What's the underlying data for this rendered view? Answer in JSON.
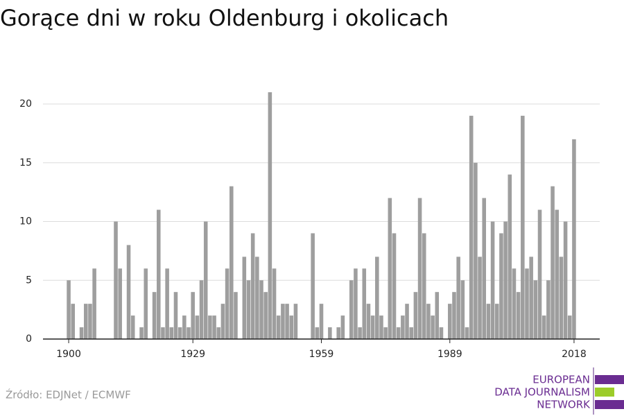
{
  "chart_data": {
    "type": "bar",
    "title": "Gorące dni w roku Oldenburg i okolicach",
    "source": "Źródło: EDJNet / ECMWF",
    "color": "#9e9e9e",
    "x": [
      1900,
      1901,
      1902,
      1903,
      1904,
      1905,
      1906,
      1907,
      1908,
      1909,
      1910,
      1911,
      1912,
      1913,
      1914,
      1915,
      1916,
      1917,
      1918,
      1919,
      1920,
      1921,
      1922,
      1923,
      1924,
      1925,
      1926,
      1927,
      1928,
      1929,
      1930,
      1931,
      1932,
      1933,
      1934,
      1935,
      1936,
      1937,
      1938,
      1939,
      1940,
      1941,
      1942,
      1943,
      1944,
      1945,
      1946,
      1947,
      1948,
      1949,
      1950,
      1951,
      1952,
      1953,
      1954,
      1955,
      1956,
      1957,
      1958,
      1959,
      1960,
      1961,
      1962,
      1963,
      1964,
      1965,
      1966,
      1967,
      1968,
      1969,
      1970,
      1971,
      1972,
      1973,
      1974,
      1975,
      1976,
      1977,
      1978,
      1979,
      1980,
      1981,
      1982,
      1983,
      1984,
      1985,
      1986,
      1987,
      1988,
      1989,
      1990,
      1991,
      1992,
      1993,
      1994,
      1995,
      1996,
      1997,
      1998,
      1999,
      2000,
      2001,
      2002,
      2003,
      2004,
      2005,
      2006,
      2007,
      2008,
      2009,
      2010,
      2011,
      2012,
      2013,
      2014,
      2015,
      2016,
      2017,
      2018
    ],
    "values": [
      5,
      3,
      0,
      1,
      3,
      3,
      6,
      0,
      0,
      0,
      0,
      10,
      6,
      0,
      8,
      2,
      0,
      1,
      6,
      0,
      4,
      11,
      1,
      6,
      1,
      4,
      1,
      2,
      1,
      4,
      2,
      5,
      10,
      2,
      2,
      1,
      3,
      6,
      13,
      4,
      0,
      7,
      5,
      9,
      7,
      5,
      4,
      21,
      6,
      2,
      3,
      3,
      2,
      3,
      0,
      0,
      0,
      9,
      1,
      3,
      0,
      1,
      0,
      1,
      2,
      0,
      5,
      6,
      1,
      6,
      3,
      2,
      7,
      2,
      1,
      12,
      9,
      1,
      2,
      3,
      1,
      4,
      12,
      9,
      3,
      2,
      4,
      1,
      0,
      3,
      4,
      7,
      5,
      1,
      19,
      15,
      7,
      12,
      3,
      10,
      3,
      9,
      10,
      14,
      6,
      4,
      19,
      6,
      7,
      5,
      11,
      2,
      5,
      13,
      11,
      7,
      10,
      2,
      17
    ],
    "xlim": [
      1894,
      2024
    ],
    "xticks": [
      1900,
      1929,
      1959,
      1989,
      2018
    ],
    "ylim": [
      0,
      20
    ],
    "yticks": [
      0,
      5,
      10,
      15,
      20
    ],
    "grid": true
  },
  "logo": {
    "lines": [
      "EUROPEAN",
      "DATA JOURNALISM",
      "NETWORK"
    ]
  }
}
